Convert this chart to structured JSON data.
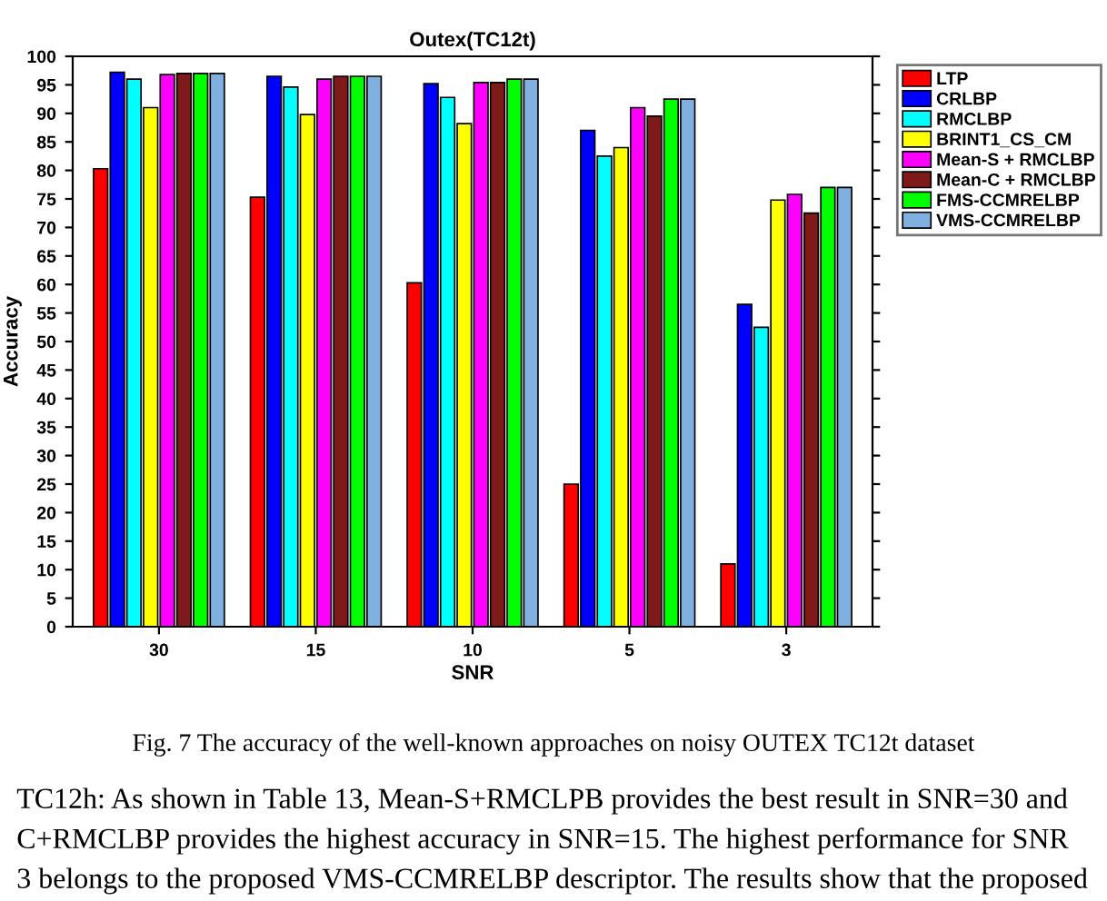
{
  "chart_data": {
    "type": "bar",
    "title": "Outex(TC12t)",
    "xlabel": "SNR",
    "ylabel": "Accuracy",
    "categories": [
      "30",
      "15",
      "10",
      "5",
      "3"
    ],
    "series": [
      {
        "name": "LTP",
        "color": "#ff0000",
        "values": [
          80.3,
          75.3,
          60.3,
          25,
          11
        ]
      },
      {
        "name": "CRLBP",
        "color": "#0000ff",
        "values": [
          97.2,
          96.5,
          95.2,
          87,
          56.5
        ]
      },
      {
        "name": "RMCLBP",
        "color": "#00ffff",
        "values": [
          96,
          94.6,
          92.8,
          82.5,
          52.5
        ]
      },
      {
        "name": "BRINT1_CS_CM",
        "color": "#ffff00",
        "values": [
          91,
          89.8,
          88.2,
          84,
          74.8
        ]
      },
      {
        "name": "Mean-S + RMCLBP",
        "color": "#ff00ff",
        "values": [
          96.8,
          96,
          95.4,
          91,
          75.8
        ]
      },
      {
        "name": "Mean-C + RMCLBP",
        "color": "#7f1a1a",
        "values": [
          97,
          96.5,
          95.4,
          89.5,
          72.5
        ]
      },
      {
        "name": "FMS-CCMRELBP",
        "color": "#00ff00",
        "values": [
          97,
          96.5,
          96,
          92.5,
          77
        ]
      },
      {
        "name": "VMS-CCMRELBP",
        "color": "#80b0e0",
        "values": [
          97,
          96.5,
          96,
          92.5,
          77
        ]
      }
    ],
    "ylim": [
      0,
      100
    ],
    "yticks": [
      0,
      5,
      10,
      15,
      20,
      25,
      30,
      35,
      40,
      45,
      50,
      55,
      60,
      65,
      70,
      75,
      80,
      85,
      90,
      95,
      100
    ],
    "grid": false,
    "legend": "top right",
    "annotations": [
      "Fig. 7 The accuracy of the well-known approaches on noisy OUTEX TC12t dataset",
      "TC12h: As shown in Table 13, Mean-S+RMCLPB provides the best result in SNR=30 and",
      "C+RMCLBP provides the highest accuracy in SNR=15. The highest performance for SNR",
      "3 belongs to the proposed VMS-CCMRELBP descriptor. The results show that the proposed"
    ]
  }
}
